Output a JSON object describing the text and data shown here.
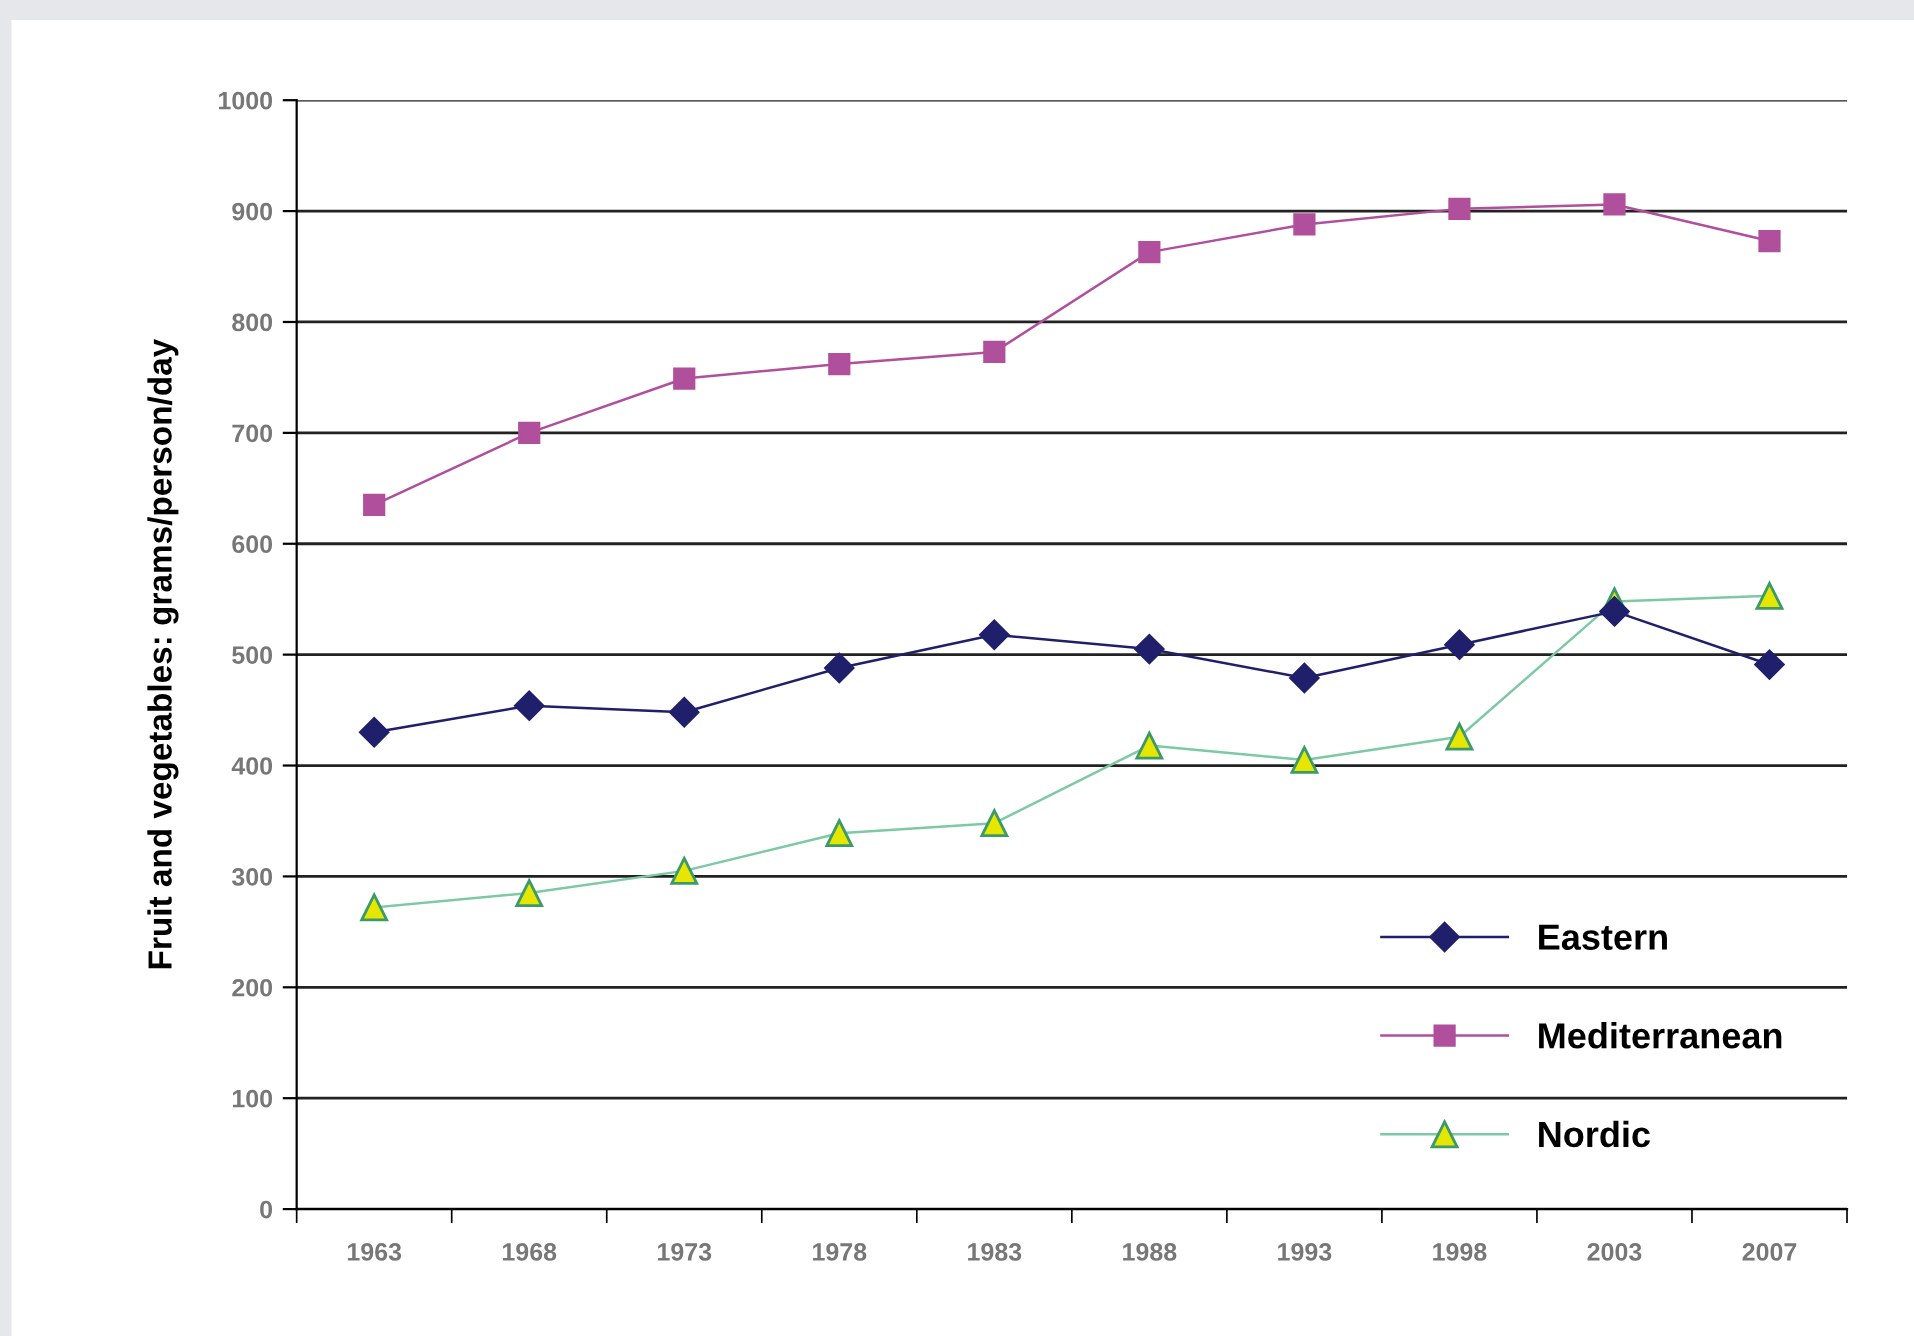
{
  "chart_data": {
    "type": "line",
    "ylabel": "Fruit and vegetables: grams/person/day",
    "categories": [
      "1963",
      "1968",
      "1973",
      "1978",
      "1983",
      "1988",
      "1993",
      "1998",
      "2003",
      "2007"
    ],
    "series": [
      {
        "name": "Eastern",
        "color": "#1f1f6b",
        "marker": "diamond",
        "values": [
          430,
          454,
          448,
          488,
          518,
          505,
          479,
          509,
          539,
          491
        ]
      },
      {
        "name": "Mediterranean",
        "color": "#b04f9c",
        "marker": "square",
        "values": [
          635,
          700,
          749,
          762,
          773,
          863,
          888,
          902,
          906,
          873
        ]
      },
      {
        "name": "Nordic",
        "color": "#e6e600",
        "marker": "triangle",
        "values": [
          272,
          285,
          305,
          339,
          348,
          418,
          405,
          426,
          548,
          553
        ]
      }
    ],
    "ylim": [
      0,
      1000
    ],
    "yticks": [
      0,
      100,
      200,
      300,
      400,
      500,
      600,
      700,
      800,
      900,
      1000
    ],
    "grid": "y",
    "legend": "bottom right",
    "line_style": "solid"
  }
}
